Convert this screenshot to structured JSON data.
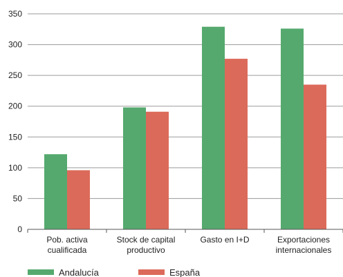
{
  "chart_data": {
    "type": "bar",
    "categories": [
      [
        "Pob. activa",
        "cualificada"
      ],
      [
        "Stock de capital",
        "productivo"
      ],
      [
        "Gasto en I+D"
      ],
      [
        "Exportaciones",
        "internacionales"
      ]
    ],
    "series": [
      {
        "name": "Andalucía",
        "color": "#55a96e",
        "values": [
          122,
          198,
          329,
          326
        ]
      },
      {
        "name": "España",
        "color": "#dc6a5a",
        "values": [
          96,
          191,
          277,
          235
        ]
      }
    ],
    "ylim": [
      0,
      350
    ],
    "yticks": [
      0,
      50,
      100,
      150,
      200,
      250,
      300,
      350
    ],
    "grid": true,
    "legend_position": "bottom-left"
  }
}
